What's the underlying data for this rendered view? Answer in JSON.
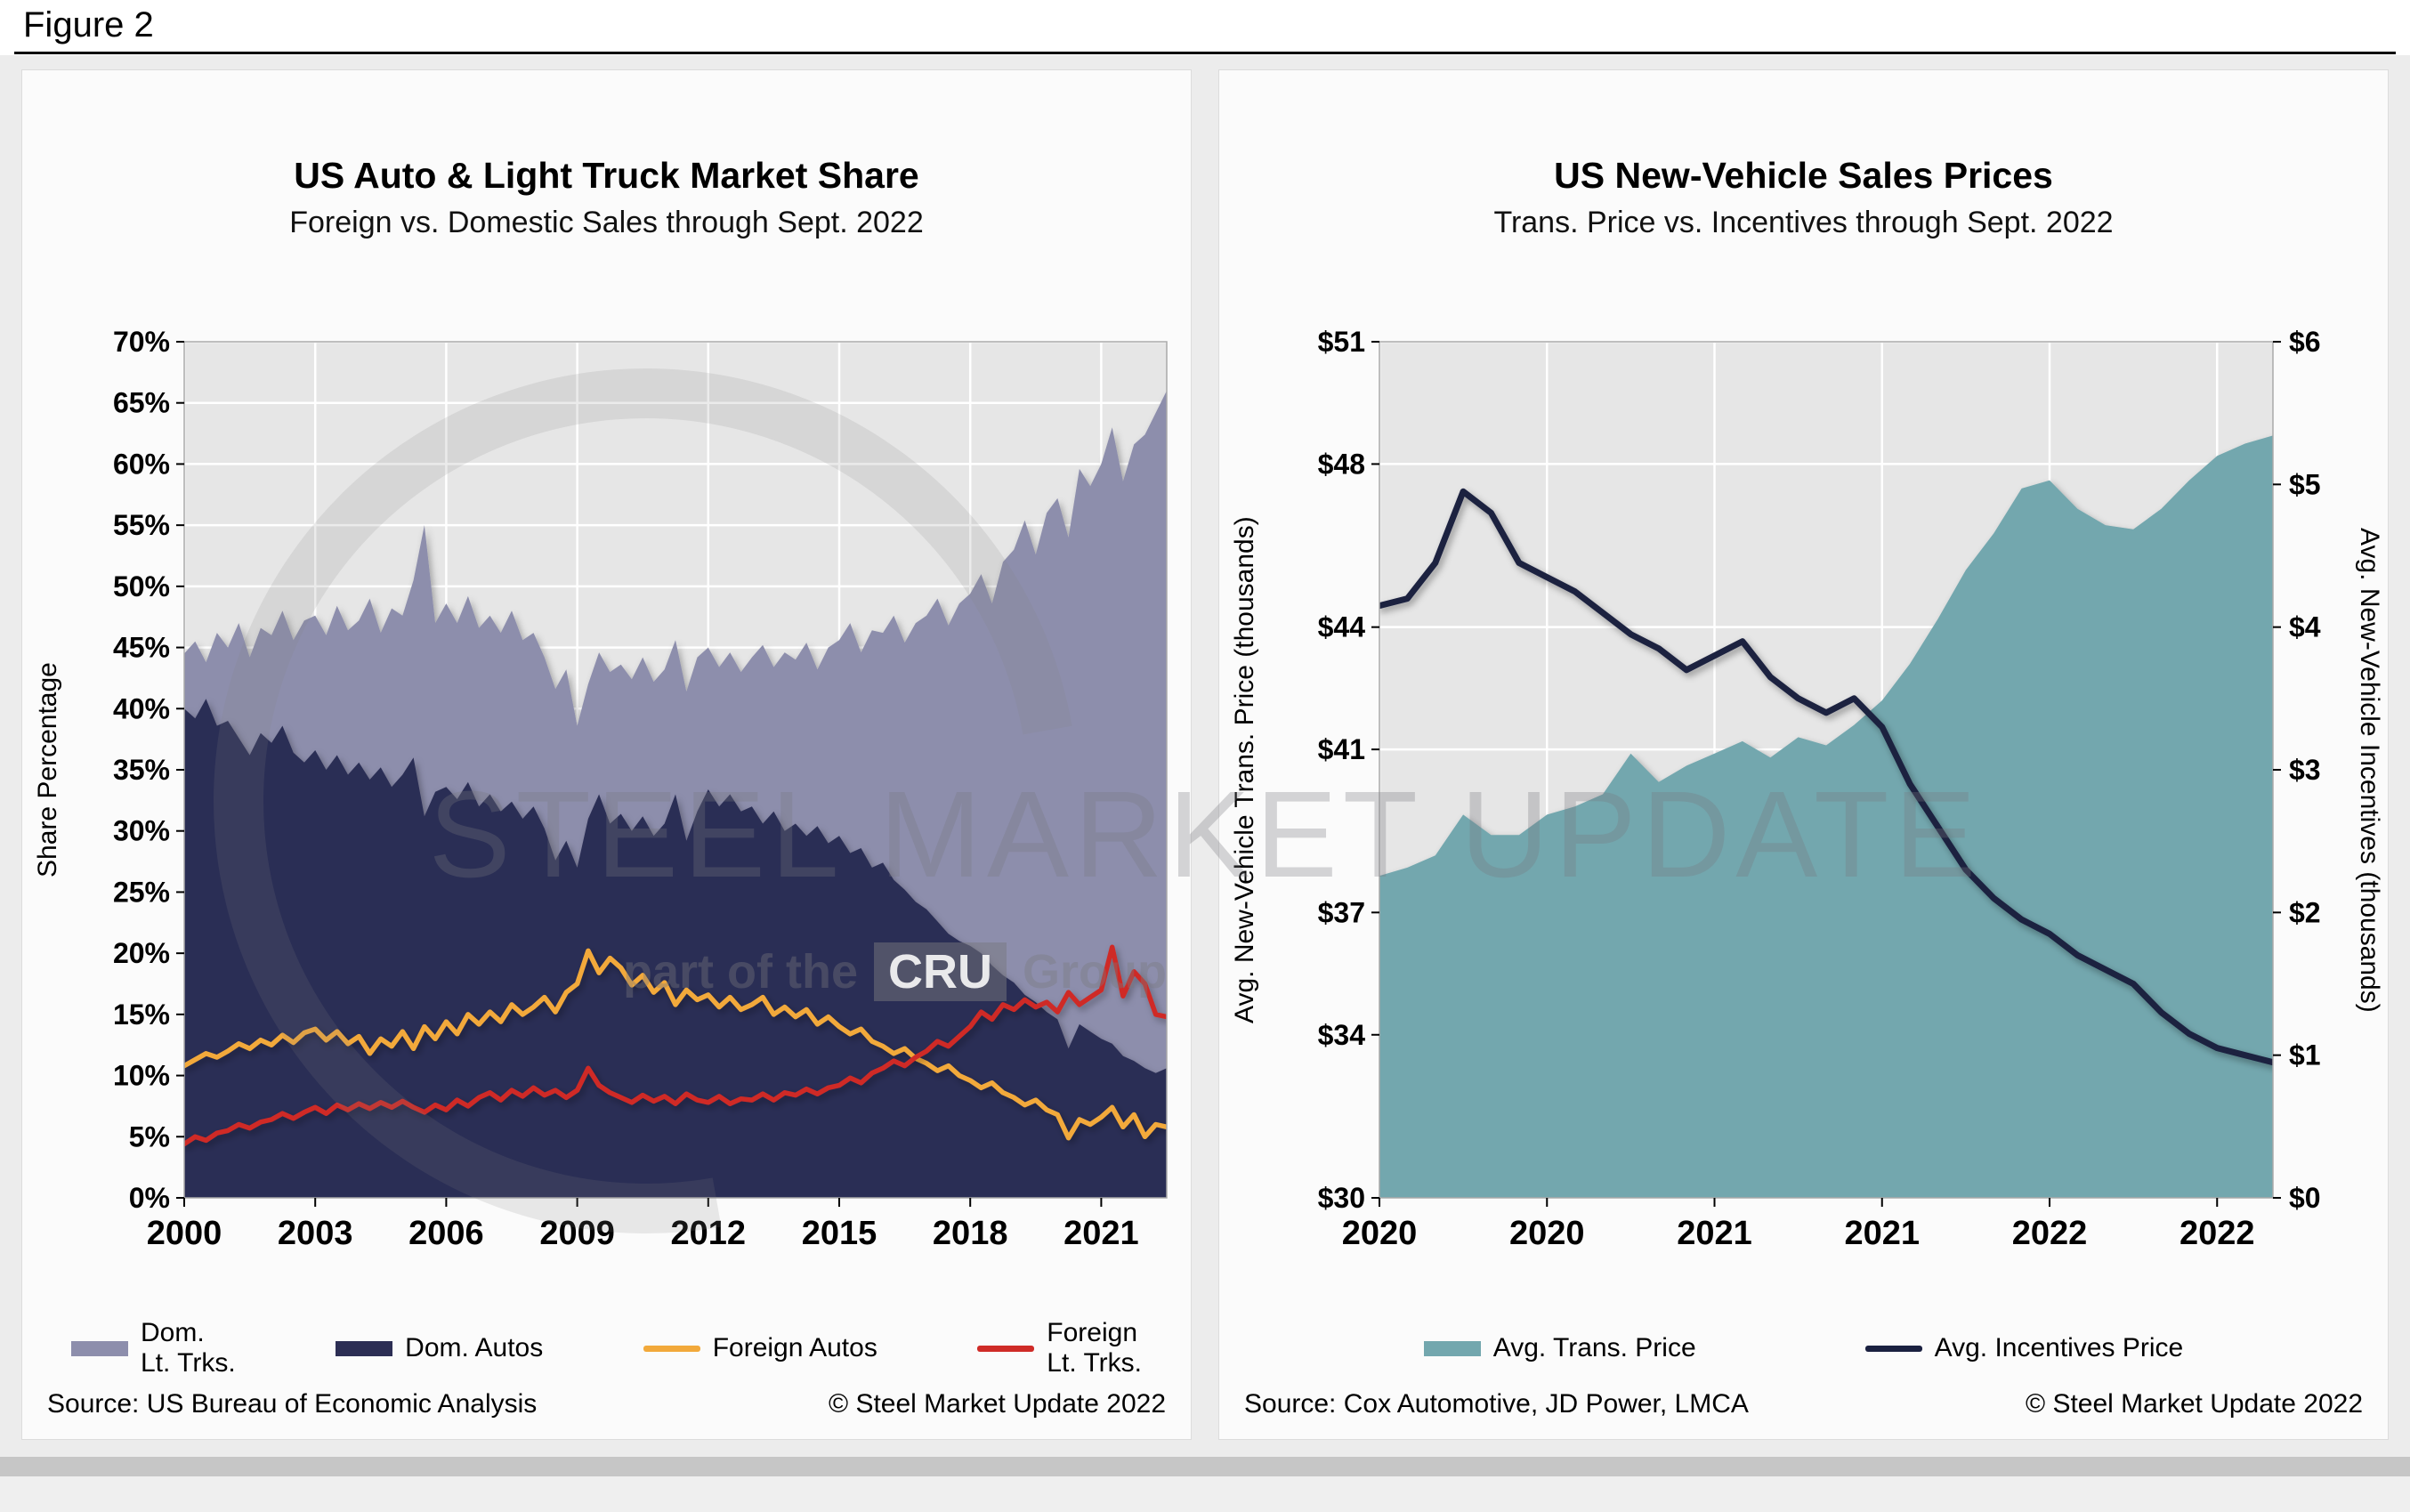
{
  "figure_label": "Figure 2",
  "watermark": {
    "title": "STEEL MARKET UPDATE",
    "tagline_prefix": "part of the",
    "tagline_box": "CRU",
    "tagline_suffix": "Group"
  },
  "chart_data": [
    {
      "type": "area",
      "title": "US Auto & Light Truck Market Share",
      "subtitle": "Foreign vs. Domestic Sales through Sept. 2022",
      "ylabel": "Share Percentage",
      "ylim": [
        0,
        70
      ],
      "ytick_step": 5,
      "ytick_suffix": "%",
      "x_start": 2000,
      "x_step_years": 0.25,
      "x_end": 2022.5,
      "xticks": [
        2000,
        2003,
        2006,
        2009,
        2012,
        2015,
        2018,
        2021
      ],
      "grid": true,
      "plot_bg": "#E6E6E6",
      "legend_position": "bottom",
      "stacking_note": "Dom. Lt. Trks. values are cumulative stack tops (Dom. Autos + Dom. Lt. Trks.); Dom. Autos values are the lower stacked area; foreign series are lines.",
      "series": [
        {
          "name": "Dom. Lt. Trks.",
          "legend_label": "Dom.\nLt. Trks.",
          "style": "area",
          "color": "#8D8EAC",
          "values": [
            44.5,
            45.5,
            43.8,
            46.2,
            45.0,
            47.0,
            44.2,
            46.6,
            46.0,
            48.0,
            45.6,
            47.2,
            47.6,
            46.0,
            48.4,
            46.4,
            47.2,
            49.0,
            46.2,
            48.2,
            47.6,
            50.5,
            55.0,
            47.0,
            48.6,
            47.0,
            49.2,
            46.6,
            47.6,
            46.2,
            48.0,
            45.6,
            46.2,
            44.2,
            41.6,
            43.2,
            38.6,
            42.0,
            44.6,
            43.0,
            43.6,
            42.4,
            44.2,
            42.2,
            43.2,
            45.6,
            41.4,
            44.2,
            45.0,
            43.4,
            44.6,
            43.0,
            44.2,
            45.2,
            43.4,
            44.6,
            44.0,
            45.4,
            43.2,
            45.0,
            45.6,
            47.0,
            44.6,
            46.4,
            46.2,
            47.6,
            45.4,
            47.0,
            47.6,
            49.0,
            46.8,
            48.6,
            49.4,
            51.0,
            48.6,
            52.0,
            53.0,
            55.4,
            52.6,
            56.0,
            57.2,
            54.0,
            59.6,
            58.2,
            60.0,
            63.0,
            58.6,
            61.6,
            62.4,
            64.2,
            66.0
          ]
        },
        {
          "name": "Dom. Autos",
          "legend_label": "Dom. Autos",
          "style": "area",
          "color": "#2C2E54",
          "values": [
            40.0,
            39.2,
            40.8,
            38.6,
            39.0,
            37.6,
            36.2,
            38.0,
            37.2,
            38.6,
            36.4,
            35.6,
            36.6,
            35.0,
            36.2,
            34.6,
            35.6,
            34.2,
            35.2,
            33.6,
            34.6,
            36.0,
            31.2,
            33.2,
            33.6,
            32.6,
            34.0,
            32.0,
            33.0,
            31.6,
            32.4,
            31.0,
            32.0,
            30.2,
            27.6,
            29.2,
            27.0,
            31.0,
            33.0,
            30.6,
            31.4,
            30.0,
            31.2,
            29.6,
            30.6,
            33.0,
            29.2,
            31.6,
            33.4,
            32.0,
            33.0,
            31.6,
            32.0,
            30.6,
            31.6,
            30.0,
            30.6,
            29.6,
            30.4,
            29.0,
            29.6,
            28.2,
            28.6,
            27.0,
            27.4,
            26.0,
            25.2,
            24.2,
            23.6,
            22.6,
            21.6,
            21.0,
            20.6,
            20.0,
            19.0,
            18.2,
            17.6,
            16.6,
            16.0,
            15.2,
            14.6,
            12.2,
            14.2,
            13.6,
            13.0,
            12.6,
            11.6,
            11.2,
            10.6,
            10.2,
            10.6
          ]
        },
        {
          "name": "Foreign Autos",
          "legend_label": "Foreign Autos",
          "style": "line",
          "color": "#F2A93B",
          "values": [
            10.8,
            11.3,
            11.8,
            11.5,
            12.0,
            12.6,
            12.2,
            12.9,
            12.5,
            13.3,
            12.7,
            13.5,
            13.8,
            12.9,
            13.6,
            12.6,
            13.2,
            11.8,
            13.0,
            12.4,
            13.6,
            12.2,
            14.0,
            13.0,
            14.4,
            13.4,
            15.0,
            14.2,
            15.2,
            14.4,
            15.8,
            15.0,
            15.6,
            16.4,
            15.2,
            16.8,
            17.5,
            20.2,
            18.4,
            19.6,
            18.8,
            17.4,
            18.2,
            16.8,
            17.6,
            15.8,
            17.0,
            16.2,
            16.6,
            15.6,
            16.4,
            15.4,
            15.8,
            16.4,
            15.0,
            15.6,
            14.8,
            15.4,
            14.2,
            14.8,
            14.0,
            13.4,
            13.8,
            12.8,
            12.4,
            11.8,
            12.2,
            11.4,
            11.0,
            10.4,
            10.8,
            10.0,
            9.6,
            9.0,
            9.4,
            8.6,
            8.2,
            7.6,
            8.0,
            7.2,
            6.8,
            4.9,
            6.4,
            6.0,
            6.6,
            7.4,
            5.8,
            6.8,
            5.0,
            6.0,
            5.8
          ]
        },
        {
          "name": "Foreign Lt. Trks.",
          "legend_label": "Foreign\nLt. Trks.",
          "style": "line",
          "color": "#CF2B27",
          "values": [
            4.4,
            5.0,
            4.7,
            5.3,
            5.5,
            6.0,
            5.7,
            6.2,
            6.4,
            6.9,
            6.5,
            7.0,
            7.4,
            6.9,
            7.6,
            7.2,
            7.7,
            7.3,
            7.8,
            7.4,
            7.9,
            7.4,
            7.0,
            7.6,
            7.2,
            8.0,
            7.5,
            8.2,
            8.6,
            8.0,
            8.8,
            8.3,
            9.0,
            8.4,
            8.8,
            8.2,
            8.8,
            10.6,
            9.2,
            8.6,
            8.2,
            7.8,
            8.4,
            7.9,
            8.3,
            7.7,
            8.5,
            8.0,
            7.8,
            8.3,
            7.7,
            8.1,
            8.0,
            8.5,
            8.0,
            8.6,
            8.4,
            8.9,
            8.5,
            9.0,
            9.2,
            9.8,
            9.4,
            10.2,
            10.6,
            11.2,
            10.8,
            11.5,
            12.0,
            12.8,
            12.4,
            13.2,
            14.0,
            15.2,
            14.6,
            15.8,
            15.4,
            16.2,
            15.6,
            16.0,
            15.2,
            16.8,
            15.8,
            16.4,
            17.0,
            20.5,
            16.5,
            18.5,
            17.5,
            15.0,
            14.8
          ]
        }
      ],
      "source": "Source: US Bureau of Economic Analysis",
      "copyright": "© Steel Market Update 2022"
    },
    {
      "type": "area+line",
      "title": "US New-Vehicle Sales Prices",
      "subtitle": "Trans. Price vs. Incentives through Sept. 2022",
      "ylabel_left": "Avg. New-Vehicle Trans. Price (thousands)",
      "ylabel_right": "Avg. New-Vehicle Incentives (thousands)",
      "ylim_left": [
        30,
        51
      ],
      "yticks_left": [
        30,
        34,
        37,
        41,
        44,
        48,
        51
      ],
      "ylim_right": [
        0,
        6
      ],
      "yticks_right": [
        0,
        1,
        2,
        3,
        4,
        5,
        6
      ],
      "ytick_prefix": "$",
      "x_range": "Jan 2020 - Sept 2022, monthly",
      "xtick_labels": [
        "2020",
        "2020",
        "2021",
        "2021",
        "2022",
        "2022"
      ],
      "xtick_indices": [
        0,
        6,
        12,
        18,
        24,
        30
      ],
      "grid": true,
      "plot_bg": "#E6E6E6",
      "legend_position": "bottom",
      "series": [
        {
          "name": "Avg. Trans. Price",
          "style": "area",
          "axis": "left",
          "color": "#73A7AE",
          "values": [
            37.9,
            38.1,
            38.4,
            39.4,
            38.9,
            38.9,
            39.4,
            39.6,
            39.9,
            40.9,
            40.2,
            40.6,
            40.9,
            41.2,
            40.8,
            41.3,
            41.1,
            41.6,
            42.2,
            43.1,
            44.2,
            45.4,
            46.3,
            47.4,
            47.6,
            46.9,
            46.5,
            46.4,
            46.9,
            47.6,
            48.2,
            48.5,
            48.7
          ]
        },
        {
          "name": "Avg. Incentives Price",
          "style": "line",
          "axis": "right",
          "color": "#1A2040",
          "values": [
            4.15,
            4.2,
            4.45,
            4.95,
            4.8,
            4.45,
            4.35,
            4.25,
            4.1,
            3.95,
            3.85,
            3.7,
            3.8,
            3.9,
            3.65,
            3.5,
            3.4,
            3.5,
            3.3,
            2.9,
            2.6,
            2.3,
            2.1,
            1.95,
            1.85,
            1.7,
            1.6,
            1.5,
            1.3,
            1.15,
            1.05,
            1.0,
            0.95
          ]
        }
      ],
      "source": "Source: Cox Automotive, JD Power, LMCA",
      "copyright": "© Steel Market Update 2022"
    }
  ]
}
